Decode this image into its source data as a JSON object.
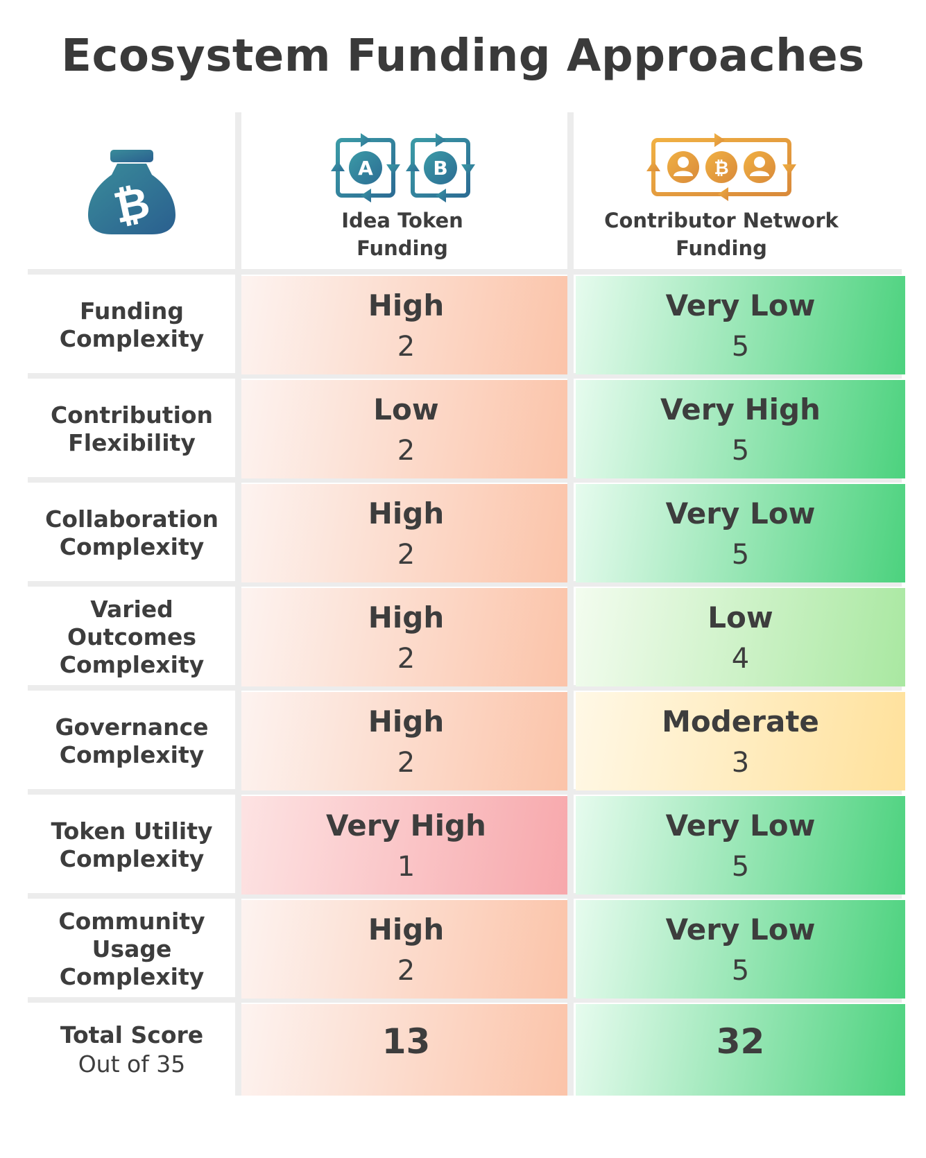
{
  "title": "Ecosystem Funding Approaches",
  "icons": {
    "left_header": "bitcoin-money-bag-icon",
    "idea_token": "idea-token-exchange-icon",
    "contributor_network": "contributor-network-icon"
  },
  "colors": {
    "low_score": "#fbc3a8",
    "very_low_score": "#f7a7ab",
    "high_score": "#4cd27e",
    "mid_high_score": "#a9e8a1",
    "moderate_score": "#ffe19b",
    "icon_teal": "#2f7f95",
    "icon_orange": "#e9a03e"
  },
  "chart_data": {
    "type": "table",
    "title": "Ecosystem Funding Approaches",
    "columns": [
      {
        "name": "Idea Token\nFunding",
        "label_lines": [
          "Idea Token",
          "Funding"
        ]
      },
      {
        "name": "Contributor Network\nFunding",
        "label_lines": [
          "Contributor Network",
          "Funding"
        ]
      }
    ],
    "rows": [
      {
        "label_lines": [
          "Funding",
          "Complexity"
        ],
        "cells": [
          {
            "level": "High",
            "score": 2
          },
          {
            "level": "Very Low",
            "score": 5
          }
        ]
      },
      {
        "label_lines": [
          "Contribution",
          "Flexibility"
        ],
        "cells": [
          {
            "level": "Low",
            "score": 2
          },
          {
            "level": "Very High",
            "score": 5
          }
        ]
      },
      {
        "label_lines": [
          "Collaboration",
          "Complexity"
        ],
        "cells": [
          {
            "level": "High",
            "score": 2
          },
          {
            "level": "Very Low",
            "score": 5
          }
        ]
      },
      {
        "label_lines": [
          "Varied",
          "Outcomes",
          "Complexity"
        ],
        "cells": [
          {
            "level": "High",
            "score": 2
          },
          {
            "level": "Low",
            "score": 4
          }
        ]
      },
      {
        "label_lines": [
          "Governance",
          "Complexity"
        ],
        "cells": [
          {
            "level": "High",
            "score": 2
          },
          {
            "level": "Moderate",
            "score": 3
          }
        ]
      },
      {
        "label_lines": [
          "Token Utility",
          "Complexity"
        ],
        "cells": [
          {
            "level": "Very High",
            "score": 1
          },
          {
            "level": "Very Low",
            "score": 5
          }
        ]
      },
      {
        "label_lines": [
          "Community",
          "Usage",
          "Complexity"
        ],
        "cells": [
          {
            "level": "High",
            "score": 2
          },
          {
            "level": "Very Low",
            "score": 5
          }
        ]
      }
    ],
    "total": {
      "label": "Total Score",
      "sublabel": "Out of 35",
      "values": [
        13,
        32
      ],
      "max": 35
    }
  }
}
